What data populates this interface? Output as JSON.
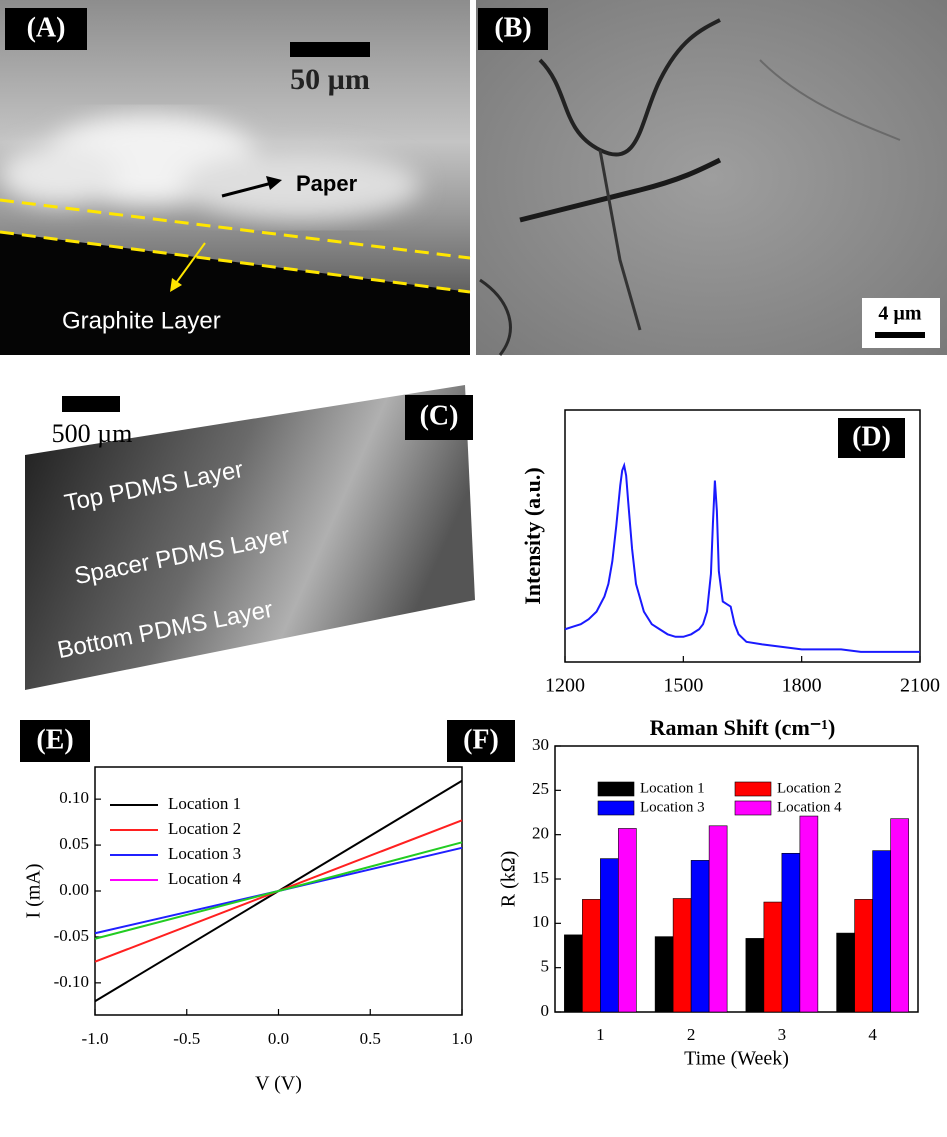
{
  "figure": {
    "panels": [
      {
        "label": "(A)",
        "scale_bar": "50 µm",
        "annotations": [
          "Paper",
          "Graphite Layer"
        ]
      },
      {
        "label": "(B)",
        "scale_bar": "4 µm"
      },
      {
        "label": "(C)",
        "scale_bar": "500 µm",
        "annotations": [
          "Top PDMS Layer",
          "Spacer PDMS Layer",
          "Bottom PDMS Layer"
        ]
      }
    ]
  },
  "chart_data": [
    {
      "type": "line",
      "panel_label": "(D)",
      "x_label": "Raman Shift (cm⁻¹)",
      "y_label": "Intensity (a.u.)",
      "x": [
        1200,
        1220,
        1240,
        1260,
        1280,
        1300,
        1310,
        1320,
        1330,
        1340,
        1345,
        1350,
        1355,
        1360,
        1370,
        1380,
        1400,
        1420,
        1440,
        1460,
        1480,
        1500,
        1520,
        1540,
        1550,
        1560,
        1570,
        1575,
        1580,
        1585,
        1590,
        1600,
        1610,
        1620,
        1630,
        1640,
        1660,
        1700,
        1750,
        1800,
        1850,
        1900,
        1950,
        2000,
        2050,
        2100
      ],
      "values": [
        13,
        14,
        15,
        17,
        20,
        26,
        31,
        40,
        54,
        70,
        76,
        78,
        74,
        64,
        45,
        31,
        20,
        15,
        13,
        11,
        10,
        10,
        11,
        13,
        15,
        20,
        35,
        55,
        72,
        60,
        36,
        24,
        23,
        22,
        15,
        11,
        8,
        7,
        6,
        5,
        5,
        5,
        4,
        4,
        4,
        4
      ],
      "color": "#1a1aff",
      "xlim": [
        1200,
        2100
      ],
      "xticks": [
        1200,
        1500,
        1800,
        2100
      ],
      "ylim": [
        0,
        100
      ]
    },
    {
      "type": "line",
      "panel_label": "(E)",
      "x_label": "V (V)",
      "y_label": "I (mA)",
      "x": [
        -1,
        0,
        1
      ],
      "series": [
        {
          "name": "Location 1",
          "color": "#000000",
          "values": [
            -0.12,
            0,
            0.12
          ]
        },
        {
          "name": "Location 2",
          "color": "#ff2020",
          "values": [
            -0.077,
            0,
            0.077
          ]
        },
        {
          "name": "Location 3",
          "color": "#2020ff",
          "values": [
            -0.046,
            0,
            0.047
          ]
        },
        {
          "name": "Location 4",
          "color": "#22cc22",
          "legend_color": "#ff00ff",
          "values": [
            -0.052,
            0,
            0.053
          ]
        }
      ],
      "xlim": [
        -1,
        1
      ],
      "xticks": [
        {
          "value": -1,
          "label": "-1.0"
        },
        -0.5,
        {
          "value": 0,
          "label": "0.0"
        },
        0.5,
        {
          "value": 1,
          "label": "1.0"
        }
      ],
      "ylim": [
        -0.135,
        0.135
      ],
      "yticks": [
        {
          "value": -0.1,
          "label": "-0.10"
        },
        {
          "value": -0.05,
          "label": "-0.05"
        },
        {
          "value": 0,
          "label": "0.00"
        },
        {
          "value": 0.05,
          "label": "0.05"
        },
        {
          "value": 0.1,
          "label": "0.10"
        }
      ],
      "legend": "upper left"
    },
    {
      "type": "bar",
      "panel_label": "(F)",
      "x_label": "Time (Week)",
      "y_label": "R (kΩ)",
      "categories": [
        "1",
        "2",
        "3",
        "4"
      ],
      "series": [
        {
          "name": "Location 1",
          "color": "#000000",
          "values": [
            8.7,
            8.5,
            8.3,
            8.9
          ]
        },
        {
          "name": "Location 2",
          "color": "#ff0000",
          "values": [
            12.7,
            12.8,
            12.4,
            12.7
          ]
        },
        {
          "name": "Location 3",
          "color": "#0000ff",
          "values": [
            17.3,
            17.1,
            17.9,
            18.2
          ]
        },
        {
          "name": "Location 4",
          "color": "#ff00ff",
          "values": [
            20.7,
            21.0,
            22.1,
            21.8
          ]
        }
      ],
      "ylim": [
        0,
        30
      ],
      "yticks": [
        0,
        5,
        10,
        15,
        20,
        25,
        30
      ],
      "legend": "upper center"
    }
  ]
}
